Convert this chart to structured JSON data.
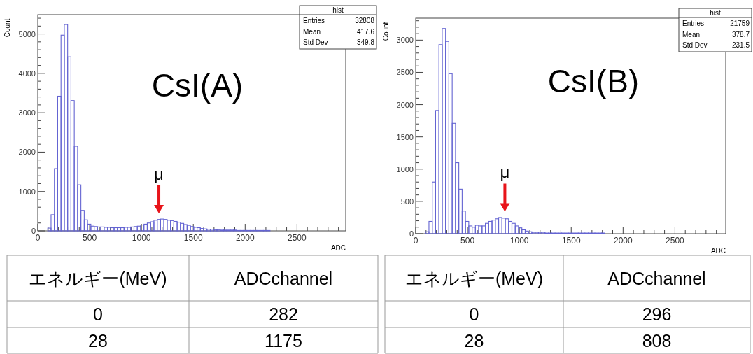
{
  "chart_data": [
    {
      "type": "histogram",
      "xlabel": "ADC",
      "ylabel": "Count",
      "color": "#6464d2",
      "bins": [
        96,
        128,
        160,
        192,
        224,
        256,
        288,
        320,
        352,
        384,
        416,
        448,
        480,
        512,
        544,
        576,
        608,
        640,
        672,
        704,
        736,
        768,
        800,
        832,
        864,
        896,
        928,
        960,
        992,
        1024,
        1056,
        1088,
        1120,
        1152,
        1184,
        1216,
        1248,
        1280,
        1312,
        1344,
        1376,
        1408,
        1440,
        1472,
        1504,
        1536,
        1568,
        1600,
        1632,
        1664,
        1696,
        1728,
        1760,
        1792,
        1824,
        1856,
        1888,
        1920,
        1952,
        1984,
        2016,
        2048,
        2080,
        2112,
        2144,
        2176,
        2208,
        2240
      ],
      "values": [
        70,
        410,
        1580,
        3420,
        4970,
        5240,
        4420,
        3310,
        2150,
        1170,
        520,
        280,
        170,
        120,
        110,
        100,
        100,
        90,
        90,
        80,
        80,
        80,
        80,
        90,
        90,
        100,
        110,
        120,
        150,
        170,
        200,
        230,
        270,
        290,
        300,
        290,
        270,
        260,
        240,
        220,
        190,
        160,
        140,
        110,
        90,
        80,
        60,
        50,
        40,
        40,
        30,
        30,
        20,
        20,
        20,
        20,
        20,
        10,
        10,
        10,
        10,
        10,
        10,
        10,
        10,
        10,
        10
      ],
      "xlim": [
        0,
        2970
      ],
      "ylim": [
        0,
        5490
      ],
      "xticks": [
        0,
        {
          "value": 100,
          "label": null
        },
        {
          "value": 200,
          "label": null
        },
        {
          "value": 300,
          "label": null
        },
        {
          "value": 400,
          "label": null
        },
        500,
        {
          "value": 600,
          "label": null
        },
        {
          "value": 700,
          "label": null
        },
        {
          "value": 800,
          "label": null
        },
        {
          "value": 900,
          "label": null
        },
        1000,
        {
          "value": 1100,
          "label": null
        },
        {
          "value": 1200,
          "label": null
        },
        {
          "value": 1300,
          "label": null
        },
        {
          "value": 1400,
          "label": null
        },
        1500,
        {
          "value": 1600,
          "label": null
        },
        {
          "value": 1700,
          "label": null
        },
        {
          "value": 1800,
          "label": null
        },
        {
          "value": 1900,
          "label": null
        },
        2000,
        {
          "value": 2100,
          "label": null
        },
        {
          "value": 2200,
          "label": null
        },
        {
          "value": 2300,
          "label": null
        },
        {
          "value": 2400,
          "label": null
        },
        2500,
        {
          "value": 2600,
          "label": null
        },
        {
          "value": 2700,
          "label": null
        },
        {
          "value": 2800,
          "label": null
        },
        {
          "value": 2900,
          "label": null
        }
      ],
      "yticks": [
        0,
        {
          "value": 200,
          "label": null
        },
        {
          "value": 400,
          "label": null
        },
        {
          "value": 600,
          "label": null
        },
        {
          "value": 800,
          "label": null
        },
        1000,
        {
          "value": 1200,
          "label": null
        },
        {
          "value": 1400,
          "label": null
        },
        {
          "value": 1600,
          "label": null
        },
        {
          "value": 1800,
          "label": null
        },
        2000,
        {
          "value": 2200,
          "label": null
        },
        {
          "value": 2400,
          "label": null
        },
        {
          "value": 2600,
          "label": null
        },
        {
          "value": 2800,
          "label": null
        },
        3000,
        {
          "value": 3200,
          "label": null
        },
        {
          "value": 3400,
          "label": null
        },
        {
          "value": 3600,
          "label": null
        },
        {
          "value": 3800,
          "label": null
        },
        4000,
        {
          "value": 4200,
          "label": null
        },
        {
          "value": 4400,
          "label": null
        },
        {
          "value": 4600,
          "label": null
        },
        {
          "value": 4800,
          "label": null
        },
        5000,
        {
          "value": 5200,
          "label": null
        },
        {
          "value": 5400,
          "label": null
        }
      ],
      "annotations": [
        "CsI(A)",
        {
          "text": "μ",
          "x": 1168,
          "y": 300
        },
        "hist",
        "Entries",
        "32808",
        "Mean",
        "417.6",
        "Std Dev",
        "349.8"
      ]
    },
    {
      "type": "histogram",
      "xlabel": "ADC",
      "ylabel": "Count",
      "color": "#6464d2",
      "bins": [
        96,
        128,
        160,
        192,
        224,
        256,
        288,
        320,
        352,
        384,
        416,
        448,
        480,
        512,
        544,
        576,
        608,
        640,
        672,
        704,
        736,
        768,
        800,
        832,
        864,
        896,
        928,
        960,
        992,
        1024,
        1056,
        1088,
        1120,
        1152,
        1184,
        1216,
        1248,
        1280,
        1312,
        1344,
        1376,
        1408,
        1440,
        1472,
        1504,
        1536,
        1568,
        1600,
        1632,
        1664,
        1696,
        1728,
        1760,
        1792,
        1824
      ],
      "values": [
        30,
        190,
        800,
        1910,
        2930,
        3180,
        2980,
        2480,
        1710,
        1100,
        690,
        350,
        190,
        120,
        100,
        130,
        120,
        120,
        160,
        190,
        210,
        230,
        250,
        240,
        230,
        190,
        160,
        120,
        90,
        60,
        40,
        30,
        20,
        20,
        20,
        20,
        10,
        10,
        10,
        10,
        10,
        10,
        10,
        10,
        10,
        10,
        10,
        10,
        10,
        10,
        10,
        10,
        10,
        10
      ],
      "xlim": [
        0,
        2990
      ],
      "ylim": [
        0,
        3340
      ],
      "xticks": [
        0,
        {
          "value": 100,
          "label": null
        },
        {
          "value": 200,
          "label": null
        },
        {
          "value": 300,
          "label": null
        },
        {
          "value": 400,
          "label": null
        },
        500,
        {
          "value": 600,
          "label": null
        },
        {
          "value": 700,
          "label": null
        },
        {
          "value": 800,
          "label": null
        },
        {
          "value": 900,
          "label": null
        },
        1000,
        {
          "value": 1100,
          "label": null
        },
        {
          "value": 1200,
          "label": null
        },
        {
          "value": 1300,
          "label": null
        },
        {
          "value": 1400,
          "label": null
        },
        1500,
        {
          "value": 1600,
          "label": null
        },
        {
          "value": 1700,
          "label": null
        },
        {
          "value": 1800,
          "label": null
        },
        {
          "value": 1900,
          "label": null
        },
        2000,
        {
          "value": 2100,
          "label": null
        },
        {
          "value": 2200,
          "label": null
        },
        {
          "value": 2300,
          "label": null
        },
        {
          "value": 2400,
          "label": null
        },
        2500,
        {
          "value": 2600,
          "label": null
        },
        {
          "value": 2700,
          "label": null
        },
        {
          "value": 2800,
          "label": null
        },
        {
          "value": 2900,
          "label": null
        }
      ],
      "yticks": [
        0,
        {
          "value": 100,
          "label": null
        },
        {
          "value": 200,
          "label": null
        },
        {
          "value": 300,
          "label": null
        },
        {
          "value": 400,
          "label": null
        },
        500,
        {
          "value": 600,
          "label": null
        },
        {
          "value": 700,
          "label": null
        },
        {
          "value": 800,
          "label": null
        },
        {
          "value": 900,
          "label": null
        },
        1000,
        {
          "value": 1100,
          "label": null
        },
        {
          "value": 1200,
          "label": null
        },
        {
          "value": 1300,
          "label": null
        },
        {
          "value": 1400,
          "label": null
        },
        1500,
        {
          "value": 1600,
          "label": null
        },
        {
          "value": 1700,
          "label": null
        },
        {
          "value": 1800,
          "label": null
        },
        {
          "value": 1900,
          "label": null
        },
        2000,
        {
          "value": 2100,
          "label": null
        },
        {
          "value": 2200,
          "label": null
        },
        {
          "value": 2300,
          "label": null
        },
        {
          "value": 2400,
          "label": null
        },
        2500,
        {
          "value": 2600,
          "label": null
        },
        {
          "value": 2700,
          "label": null
        },
        {
          "value": 2800,
          "label": null
        },
        {
          "value": 2900,
          "label": null
        },
        3000,
        {
          "value": 3100,
          "label": null
        },
        {
          "value": 3200,
          "label": null
        },
        {
          "value": 3300,
          "label": null
        }
      ],
      "annotations": [
        "CsI(B)",
        {
          "text": "μ",
          "x": 860,
          "y": 255
        },
        "hist",
        "Entries",
        "21759",
        "Mean",
        "378.7",
        "Std Dev",
        "231.5"
      ]
    },
    {
      "type": "other",
      "annotations": [
        "エネルギー(MeV)",
        "ADCchannel",
        "0",
        "282",
        "28",
        "1175"
      ]
    },
    {
      "type": "other",
      "annotations": [
        "エネルギー(MeV)",
        "ADCchannel",
        "0",
        "296",
        "28",
        "808"
      ]
    }
  ]
}
